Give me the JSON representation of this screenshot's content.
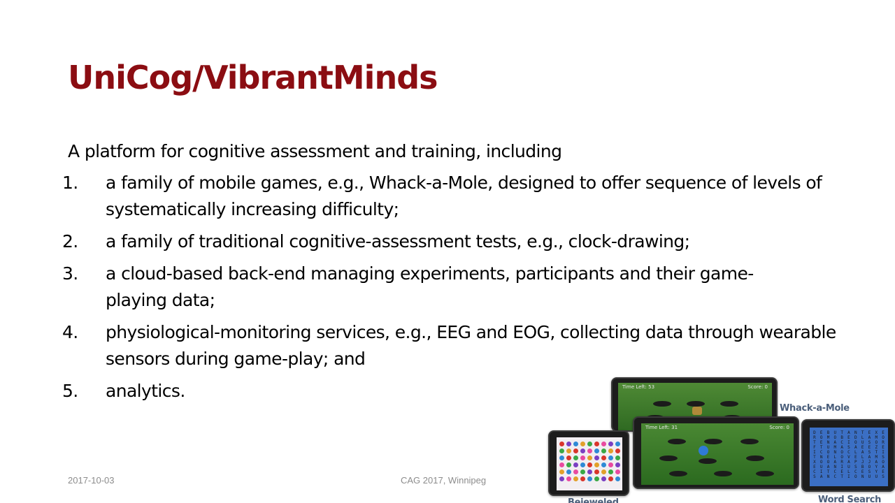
{
  "slide": {
    "title": "UniCog/VibrantMinds",
    "intro": "A platform for cognitive assessment and training, including",
    "items": [
      {
        "num": "1.",
        "text": "a family of mobile games, e.g., Whack-a-Mole, designed to offer  sequence of levels of systematically increasing difficulty;"
      },
      {
        "num": "2.",
        "text": "a family of traditional cognitive-assessment tests, e.g., clock-drawing;"
      },
      {
        "num": "3.",
        "text": "a cloud-based back-end managing experiments, participants and their game-playing data;"
      },
      {
        "num": "4.",
        "text": "physiological-monitoring services, e.g., EEG and EOG, collecting data through wearable sensors during game-play; and"
      },
      {
        "num": "5.",
        "text": "analytics."
      }
    ]
  },
  "footer": {
    "date": "2017-10-03",
    "conference": "CAG 2017, Winnipeg"
  },
  "screenshots": {
    "whack_back": {
      "time": "Time Left: 53",
      "score": "Score: 0"
    },
    "whack_front": {
      "time": "Time Left: 31",
      "score": "Score: 0"
    },
    "captions": {
      "whack": "Whack-a-Mole",
      "bejeweled": "Bejeweled",
      "word_search": "Word Search"
    }
  },
  "colors": {
    "title": "#8b0d12",
    "footer_text": "#8c8c8c",
    "caption": "#4a5e7a",
    "game_field": "#3d7a2a",
    "word_grid": "#3b6fc4"
  }
}
